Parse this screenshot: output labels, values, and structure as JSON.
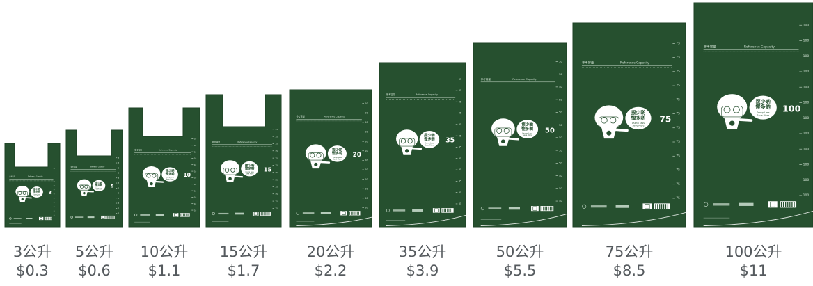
{
  "bag_color": "#26502f",
  "bag_edge_color": "#1e4226",
  "line_color": "#cfe0d2",
  "text_color": "#555a5e",
  "mascot_icon": "smiling-bag-mascot-icon",
  "bag_slogan": {
    "zh": "揼少啲\n慳多啲",
    "en": "Dump Less\nSave More"
  },
  "header_zh": "參考容量",
  "header_en": "Reference Capacity",
  "bags": [
    {
      "capacity": "3",
      "size_label": "3公升",
      "price_label": "$0.3",
      "handles": true
    },
    {
      "capacity": "5",
      "size_label": "5公升",
      "price_label": "$0.6",
      "handles": true
    },
    {
      "capacity": "10",
      "size_label": "10公升",
      "price_label": "$1.1",
      "handles": true
    },
    {
      "capacity": "15",
      "size_label": "15公升",
      "price_label": "$1.7",
      "handles": true
    },
    {
      "capacity": "20",
      "size_label": "20公升",
      "price_label": "$2.2",
      "handles": false
    },
    {
      "capacity": "35",
      "size_label": "35公升",
      "price_label": "$3.9",
      "handles": false
    },
    {
      "capacity": "50",
      "size_label": "50公升",
      "price_label": "$5.5",
      "handles": false
    },
    {
      "capacity": "75",
      "size_label": "75公升",
      "price_label": "$8.5",
      "handles": false
    },
    {
      "capacity": "100",
      "size_label": "100公升",
      "price_label": "$11",
      "handles": false
    }
  ]
}
